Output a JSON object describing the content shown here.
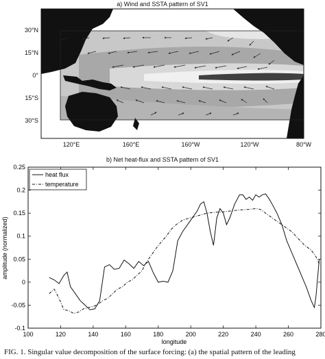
{
  "panel_a": {
    "title": "a) Wind and SSTA pattern of SV1",
    "lat_labels": [
      "30°N",
      "15°N",
      "0°",
      "15°S",
      "30°S"
    ],
    "lon_labels": [
      "120°E",
      "160°E",
      "160°W",
      "120°W",
      "80°W"
    ]
  },
  "panel_b": {
    "title": "b) Net heat-flux and SSTA pattern of SV1"
  },
  "caption": "FIG. 1. Singular value decomposition of the surface forcing: (a) the spatial pattern of the leading",
  "chart_data": {
    "type": "line",
    "xlabel": "longitude",
    "ylabel": "amplitude (normalized)",
    "xlim": [
      100,
      280
    ],
    "ylim": [
      -0.1,
      0.25
    ],
    "xticks": [
      100,
      120,
      140,
      160,
      180,
      200,
      220,
      240,
      260,
      280
    ],
    "yticks": [
      -0.1,
      -0.05,
      0,
      0.05,
      0.1,
      0.15,
      0.2,
      0.25
    ],
    "legend_position": "top-left",
    "series": [
      {
        "name": "heat flux",
        "style": "solid",
        "x": [
          113,
          116,
          119,
          122,
          124,
          126,
          129,
          132,
          135,
          138,
          141,
          144,
          147,
          150,
          153,
          156,
          159,
          162,
          165,
          168,
          171,
          174,
          177,
          180,
          183,
          186,
          189,
          192,
          195,
          198,
          201,
          204,
          206,
          208,
          210,
          212,
          214,
          216,
          218,
          220,
          222,
          224,
          227,
          230,
          232,
          234,
          236,
          238,
          240,
          242,
          244,
          246,
          248,
          250,
          253,
          256,
          259,
          262,
          265,
          268,
          271,
          274,
          276,
          277,
          279
        ],
        "values": [
          0.01,
          0.005,
          -0.003,
          0.015,
          0.022,
          -0.01,
          -0.025,
          -0.04,
          -0.05,
          -0.06,
          -0.058,
          -0.04,
          0.033,
          0.038,
          0.028,
          0.03,
          0.048,
          0.04,
          0.03,
          0.045,
          0.036,
          0.045,
          0.02,
          0.0,
          0.002,
          0.0,
          0.025,
          0.09,
          0.11,
          0.125,
          0.14,
          0.155,
          0.17,
          0.175,
          0.15,
          0.11,
          0.08,
          0.14,
          0.16,
          0.15,
          0.125,
          0.14,
          0.17,
          0.19,
          0.19,
          0.18,
          0.185,
          0.178,
          0.19,
          0.185,
          0.19,
          0.192,
          0.182,
          0.17,
          0.15,
          0.125,
          0.09,
          0.065,
          0.04,
          0.015,
          -0.01,
          -0.04,
          -0.055,
          -0.03,
          0.05
        ]
      },
      {
        "name": "temperature",
        "style": "dashed",
        "x": [
          113,
          116,
          119,
          122,
          125,
          128,
          131,
          134,
          137,
          140,
          143,
          146,
          149,
          152,
          155,
          158,
          161,
          164,
          167,
          170,
          173,
          176,
          179,
          182,
          185,
          188,
          191,
          195,
          200,
          205,
          210,
          215,
          220,
          225,
          230,
          235,
          240,
          243,
          246,
          250,
          254,
          258,
          262,
          266,
          270,
          274,
          277,
          279
        ],
        "values": [
          -0.025,
          -0.015,
          -0.035,
          -0.06,
          -0.062,
          -0.068,
          -0.065,
          -0.058,
          -0.055,
          -0.053,
          -0.048,
          -0.04,
          -0.035,
          -0.025,
          -0.015,
          -0.01,
          0.0,
          0.005,
          0.015,
          0.025,
          0.045,
          0.06,
          0.075,
          0.088,
          0.1,
          0.115,
          0.125,
          0.135,
          0.14,
          0.145,
          0.15,
          0.152,
          0.153,
          0.155,
          0.157,
          0.158,
          0.16,
          0.158,
          0.15,
          0.14,
          0.13,
          0.12,
          0.11,
          0.095,
          0.08,
          0.07,
          0.055,
          0.04
        ]
      }
    ]
  }
}
